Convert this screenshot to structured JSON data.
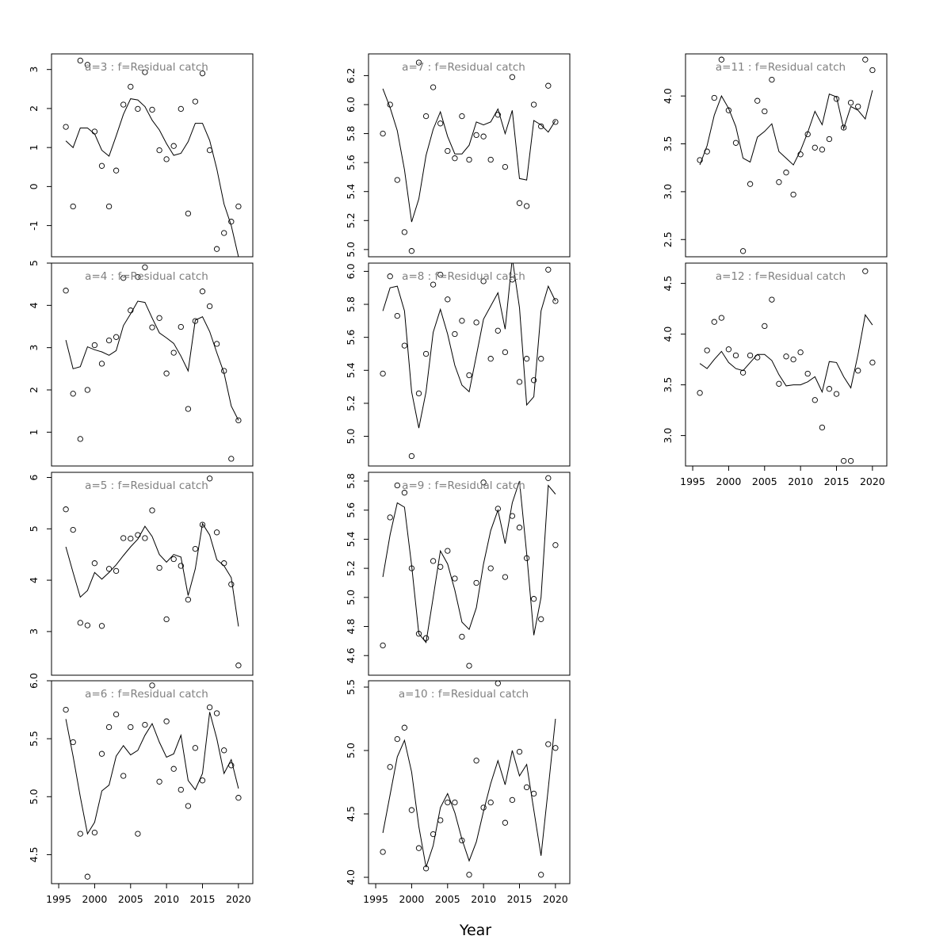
{
  "xlabel": "Year",
  "chart_data": [
    {
      "type": "scatter",
      "title": "a=3  :  f=Residual catch",
      "xlim": [
        1994,
        2022
      ],
      "ylim": [
        -1.8,
        3.4
      ],
      "yticks": [
        "-1",
        "0",
        "1",
        "2",
        "3"
      ],
      "xticks": [],
      "x": [
        1996,
        1997,
        1998,
        1999,
        2000,
        2001,
        2002,
        2003,
        2004,
        2005,
        2006,
        2007,
        2008,
        2009,
        2010,
        2011,
        2012,
        2013,
        2014,
        2015,
        2016,
        2017,
        2018,
        2019,
        2020
      ],
      "points": [
        1.53,
        -0.51,
        3.23,
        3.12,
        1.41,
        0.53,
        -0.51,
        0.41,
        2.1,
        2.56,
        1.99,
        2.93,
        1.97,
        0.93,
        0.7,
        1.04,
        1.99,
        -0.69,
        2.18,
        2.9,
        0.93,
        -1.6,
        -1.19,
        -0.9,
        -0.51
      ],
      "fit": [
        1.17,
        1.0,
        1.5,
        1.5,
        1.35,
        0.93,
        0.78,
        1.3,
        1.85,
        2.25,
        2.22,
        2.05,
        1.7,
        1.45,
        1.1,
        0.8,
        0.85,
        1.15,
        1.62,
        1.62,
        1.18,
        0.45,
        -0.45,
        -1.0,
        -1.8
      ]
    },
    {
      "type": "scatter",
      "title": "a=4  :  f=Residual catch",
      "xlim": [
        1994,
        2022
      ],
      "ylim": [
        0.2,
        5.0
      ],
      "yticks": [
        "1",
        "2",
        "3",
        "4",
        "5"
      ],
      "xticks": [],
      "x": [
        1996,
        1997,
        1998,
        1999,
        2000,
        2001,
        2002,
        2003,
        2004,
        2005,
        2006,
        2007,
        2008,
        2009,
        2010,
        2011,
        2012,
        2013,
        2014,
        2015,
        2016,
        2017,
        2018,
        2019,
        2020
      ],
      "points": [
        4.35,
        1.91,
        0.84,
        2.0,
        3.06,
        2.62,
        3.17,
        3.25,
        4.65,
        3.88,
        4.67,
        4.9,
        3.48,
        3.7,
        2.39,
        2.88,
        3.49,
        1.55,
        3.63,
        4.33,
        3.98,
        3.09,
        2.45,
        0.37,
        1.28
      ],
      "fit": [
        3.18,
        2.5,
        2.55,
        3.02,
        2.95,
        2.9,
        2.82,
        2.93,
        3.52,
        3.8,
        4.1,
        4.07,
        3.7,
        3.35,
        3.23,
        3.1,
        2.8,
        2.45,
        3.65,
        3.73,
        3.38,
        2.88,
        2.4,
        1.62,
        1.28
      ]
    },
    {
      "type": "scatter",
      "title": "a=5  :  f=Residual catch",
      "xlim": [
        1994,
        2022
      ],
      "ylim": [
        2.15,
        6.1
      ],
      "yticks": [
        "3",
        "4",
        "5",
        "6"
      ],
      "xticks": [],
      "x": [
        1996,
        1997,
        1998,
        1999,
        2000,
        2001,
        2002,
        2003,
        2004,
        2005,
        2006,
        2007,
        2008,
        2009,
        2010,
        2011,
        2012,
        2013,
        2014,
        2015,
        2016,
        2017,
        2018,
        2019,
        2020
      ],
      "points": [
        5.38,
        4.98,
        3.17,
        3.12,
        4.33,
        3.11,
        4.22,
        4.18,
        4.82,
        4.81,
        4.88,
        4.82,
        5.36,
        4.24,
        3.24,
        4.41,
        4.28,
        3.62,
        4.61,
        5.08,
        5.98,
        4.93,
        4.33,
        3.92,
        2.34
      ],
      "fit": [
        4.65,
        4.15,
        3.67,
        3.8,
        4.15,
        4.02,
        4.15,
        4.3,
        4.48,
        4.65,
        4.8,
        5.05,
        4.85,
        4.5,
        4.35,
        4.5,
        4.45,
        3.7,
        4.22,
        5.1,
        4.88,
        4.4,
        4.28,
        4.05,
        3.1
      ],
      "_fit_note_": ""
    },
    {
      "type": "scatter",
      "title": "a=6  :  f=Residual catch",
      "xlim": [
        1994,
        2022
      ],
      "ylim": [
        4.25,
        6.0
      ],
      "yticks": [
        "4.5",
        "5.0",
        "5.5",
        "6.0"
      ],
      "xticks": [
        "1995",
        "2000",
        "2005",
        "2010",
        "2015",
        "2020"
      ],
      "x": [
        1996,
        1997,
        1998,
        1999,
        2000,
        2001,
        2002,
        2003,
        2004,
        2005,
        2006,
        2007,
        2008,
        2009,
        2010,
        2011,
        2012,
        2013,
        2014,
        2015,
        2016,
        2017,
        2018,
        2019,
        2020
      ],
      "points": [
        5.75,
        5.47,
        4.68,
        4.31,
        4.69,
        5.37,
        5.6,
        5.71,
        5.18,
        5.6,
        4.68,
        5.62,
        5.96,
        5.13,
        5.65,
        5.24,
        5.06,
        4.92,
        5.42,
        5.14,
        5.77,
        5.72,
        5.4,
        5.27,
        4.99
      ],
      "fit": [
        5.67,
        5.35,
        5.0,
        4.68,
        4.78,
        5.05,
        5.1,
        5.35,
        5.44,
        5.36,
        5.4,
        5.53,
        5.63,
        5.47,
        5.34,
        5.37,
        5.53,
        5.14,
        5.06,
        5.2,
        5.73,
        5.5,
        5.2,
        5.32,
        5.07
      ]
    },
    {
      "type": "scatter",
      "title": "a=7  :  f=Residual catch",
      "xlim": [
        1994,
        2022
      ],
      "ylim": [
        4.95,
        6.35
      ],
      "yticks": [
        "5.0",
        "5.2",
        "5.4",
        "5.6",
        "5.8",
        "6.0",
        "6.2"
      ],
      "xticks": [],
      "x": [
        1996,
        1997,
        1998,
        1999,
        2000,
        2001,
        2002,
        2003,
        2004,
        2005,
        2006,
        2007,
        2008,
        2009,
        2010,
        2011,
        2012,
        2013,
        2014,
        2015,
        2016,
        2017,
        2018,
        2019,
        2020
      ],
      "points": [
        5.8,
        6.0,
        5.48,
        5.12,
        4.99,
        6.29,
        5.92,
        6.12,
        5.87,
        5.68,
        5.63,
        5.92,
        5.62,
        5.79,
        5.78,
        5.62,
        5.93,
        5.57,
        6.19,
        5.32,
        5.3,
        6.0,
        5.85,
        6.13,
        5.88
      ],
      "fit": [
        6.11,
        5.98,
        5.82,
        5.55,
        5.19,
        5.35,
        5.65,
        5.83,
        5.95,
        5.78,
        5.66,
        5.66,
        5.72,
        5.88,
        5.86,
        5.88,
        5.97,
        5.8,
        5.96,
        5.49,
        5.48,
        5.89,
        5.86,
        5.81,
        5.89
      ]
    },
    {
      "type": "scatter",
      "title": "a=8  :  f=Residual catch",
      "xlim": [
        1994,
        2022
      ],
      "ylim": [
        4.82,
        6.05
      ],
      "yticks": [
        "5.0",
        "5.2",
        "5.4",
        "5.6",
        "5.8",
        "6.0"
      ],
      "xticks": [],
      "x": [
        1996,
        1997,
        1998,
        1999,
        2000,
        2001,
        2002,
        2003,
        2004,
        2005,
        2006,
        2007,
        2008,
        2009,
        2010,
        2011,
        2012,
        2013,
        2014,
        2015,
        2016,
        2017,
        2018,
        2019,
        2020
      ],
      "points": [
        5.38,
        5.97,
        5.73,
        5.55,
        4.88,
        5.26,
        5.5,
        5.92,
        5.98,
        5.83,
        5.62,
        5.7,
        5.37,
        5.69,
        5.94,
        5.47,
        5.64,
        5.51,
        5.95,
        5.33,
        5.47,
        5.34,
        5.47,
        6.01,
        5.82
      ],
      "fit": [
        5.76,
        5.9,
        5.91,
        5.76,
        5.27,
        5.05,
        5.27,
        5.63,
        5.77,
        5.62,
        5.43,
        5.31,
        5.27,
        5.49,
        5.71,
        5.79,
        5.87,
        5.65,
        6.08,
        5.78,
        5.19,
        5.24,
        5.76,
        5.91,
        5.82
      ]
    },
    {
      "type": "scatter",
      "title": "a=9  :  f=Residual catch",
      "xlim": [
        1994,
        2022
      ],
      "ylim": [
        4.465,
        5.86
      ],
      "yticks": [
        "4.6",
        "4.8",
        "5.0",
        "5.2",
        "5.4",
        "5.6",
        "5.8"
      ],
      "xticks": [],
      "x": [
        1996,
        1997,
        1998,
        1999,
        2000,
        2001,
        2002,
        2003,
        2004,
        2005,
        2006,
        2007,
        2008,
        2009,
        2010,
        2011,
        2012,
        2013,
        2014,
        2015,
        2016,
        2017,
        2018,
        2019,
        2020
      ],
      "points": [
        4.67,
        5.55,
        5.77,
        5.72,
        5.2,
        4.75,
        4.72,
        5.25,
        5.21,
        5.32,
        5.13,
        4.73,
        4.53,
        5.1,
        5.79,
        5.2,
        5.61,
        5.14,
        5.56,
        5.48,
        5.27,
        4.99,
        4.85,
        5.82,
        5.36
      ],
      "fit": [
        5.14,
        5.43,
        5.65,
        5.62,
        5.22,
        4.75,
        4.69,
        5.0,
        5.32,
        5.23,
        5.05,
        4.83,
        4.78,
        4.93,
        5.23,
        5.46,
        5.6,
        5.37,
        5.65,
        5.8,
        5.3,
        4.74,
        5.0,
        5.77,
        5.71
      ]
    },
    {
      "type": "scatter",
      "title": "a=10  :  f=Residual catch",
      "xlim": [
        1994,
        2022
      ],
      "ylim": [
        3.95,
        5.55
      ],
      "yticks": [
        "4.0",
        "4.5",
        "5.0",
        "5.5"
      ],
      "xticks": [
        "1995",
        "2000",
        "2005",
        "2010",
        "2015",
        "2020"
      ],
      "x": [
        1996,
        1997,
        1998,
        1999,
        2000,
        2001,
        2002,
        2003,
        2004,
        2005,
        2006,
        2007,
        2008,
        2009,
        2010,
        2011,
        2012,
        2013,
        2014,
        2015,
        2016,
        2017,
        2018,
        2019,
        2020
      ],
      "points": [
        4.2,
        4.87,
        5.09,
        5.18,
        4.53,
        4.23,
        4.07,
        4.34,
        4.45,
        4.59,
        4.59,
        4.29,
        4.02,
        4.92,
        4.55,
        4.59,
        5.53,
        4.43,
        4.61,
        4.99,
        4.71,
        4.66,
        4.02,
        5.05,
        5.02
      ],
      "fit": [
        4.35,
        4.65,
        4.95,
        5.08,
        4.83,
        4.4,
        4.08,
        4.25,
        4.55,
        4.66,
        4.51,
        4.3,
        4.13,
        4.28,
        4.52,
        4.74,
        4.92,
        4.73,
        5.0,
        4.8,
        4.89,
        4.53,
        4.17,
        4.7,
        5.25
      ]
    },
    {
      "type": "scatter",
      "title": "a=11  :  f=Residual catch",
      "xlim": [
        1994,
        2022
      ],
      "ylim": [
        2.32,
        4.44
      ],
      "yticks": [
        "2.5",
        "3.0",
        "3.5",
        "4.0"
      ],
      "xticks": [],
      "x": [
        1996,
        1997,
        1998,
        1999,
        2000,
        2001,
        2002,
        2003,
        2004,
        2005,
        2006,
        2007,
        2008,
        2009,
        2010,
        2011,
        2012,
        2013,
        2014,
        2015,
        2016,
        2017,
        2018,
        2019,
        2020
      ],
      "points": [
        3.33,
        3.42,
        3.98,
        4.38,
        3.85,
        3.51,
        2.38,
        3.08,
        3.95,
        3.84,
        4.17,
        3.1,
        3.2,
        2.97,
        3.39,
        3.6,
        3.46,
        3.44,
        3.55,
        3.97,
        3.67,
        3.93,
        3.89,
        4.38,
        4.27
      ],
      "fit": [
        3.28,
        3.48,
        3.8,
        4.0,
        3.87,
        3.68,
        3.35,
        3.31,
        3.57,
        3.63,
        3.71,
        3.42,
        3.35,
        3.28,
        3.43,
        3.62,
        3.84,
        3.7,
        4.02,
        3.99,
        3.66,
        3.89,
        3.85,
        3.76,
        4.06
      ]
    },
    {
      "type": "scatter",
      "title": "a=12  :  f=Residual catch",
      "xlim": [
        1994,
        2022
      ],
      "ylim": [
        2.7,
        4.7
      ],
      "yticks": [
        "3.0",
        "3.5",
        "4.0",
        "4.5"
      ],
      "xticks": [
        "1995",
        "2000",
        "2005",
        "2010",
        "2015",
        "2020"
      ],
      "x": [
        1996,
        1997,
        1998,
        1999,
        2000,
        2001,
        2002,
        2003,
        2004,
        2005,
        2006,
        2007,
        2008,
        2009,
        2010,
        2011,
        2012,
        2013,
        2014,
        2015,
        2016,
        2017,
        2018,
        2019,
        2020
      ],
      "points": [
        3.42,
        3.84,
        4.12,
        4.16,
        3.85,
        3.79,
        3.62,
        3.79,
        3.77,
        4.08,
        4.34,
        3.51,
        3.78,
        3.75,
        3.82,
        3.61,
        3.35,
        3.08,
        3.46,
        3.41,
        2.75,
        2.75,
        3.64,
        4.62,
        3.72
      ],
      "fit": [
        3.71,
        3.66,
        3.75,
        3.83,
        3.72,
        3.66,
        3.64,
        3.72,
        3.8,
        3.8,
        3.74,
        3.6,
        3.49,
        3.5,
        3.5,
        3.53,
        3.58,
        3.43,
        3.73,
        3.72,
        3.58,
        3.47,
        3.8,
        4.19,
        4.09
      ]
    }
  ]
}
